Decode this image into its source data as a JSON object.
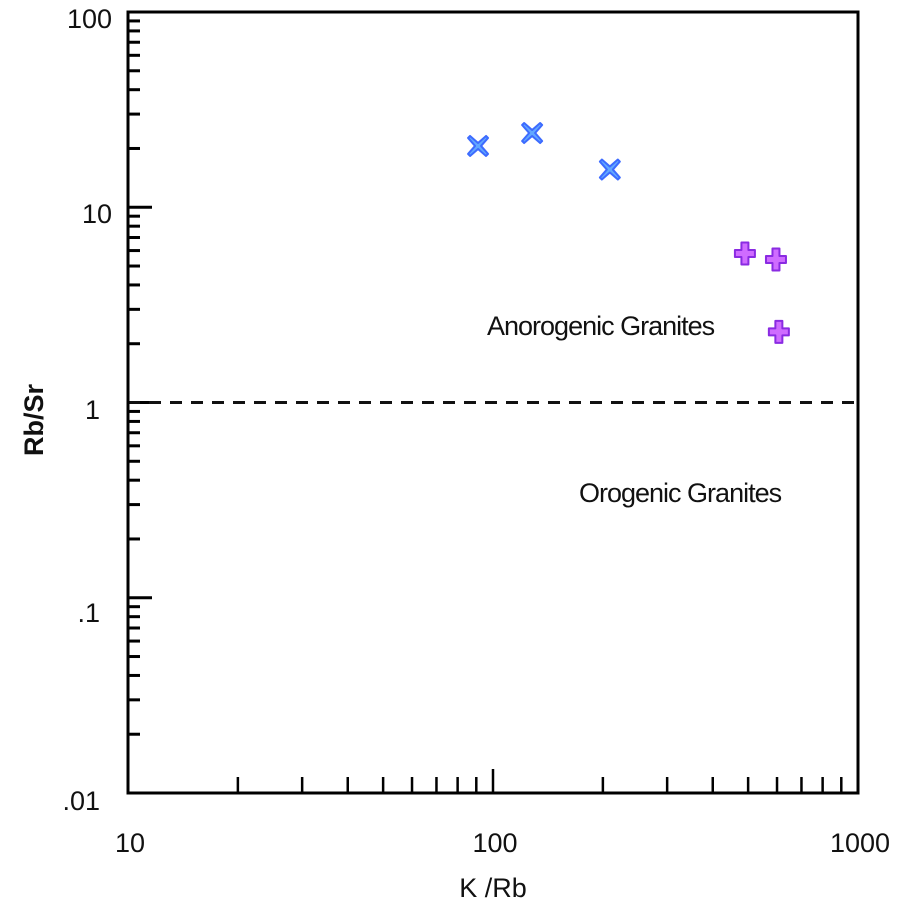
{
  "chart_data": {
    "type": "scatter",
    "title": "",
    "xlabel": "K /Rb",
    "ylabel": "Rb/Sr",
    "xscale": "log",
    "yscale": "log",
    "xlim": [
      10,
      1000
    ],
    "ylim": [
      0.01,
      100
    ],
    "x_tick_labels": [
      "10",
      "100",
      "1000"
    ],
    "x_tick_values": [
      10,
      100,
      1000
    ],
    "y_tick_labels": [
      "100",
      "10",
      "1",
      ".1",
      ".01"
    ],
    "y_tick_values": [
      100,
      10,
      1,
      0.1,
      0.01
    ],
    "grid": false,
    "legend": null,
    "series": [
      {
        "name": "blue-x",
        "marker": "x",
        "color": "#3d6bff",
        "fill": "#62a8ff",
        "points": [
          {
            "x": 91,
            "y": 20.6
          },
          {
            "x": 128,
            "y": 24
          },
          {
            "x": 209,
            "y": 15.6
          }
        ]
      },
      {
        "name": "purple-plus",
        "marker": "plus",
        "color": "#8a2be2",
        "fill": "#cf6cff",
        "points": [
          {
            "x": 490,
            "y": 5.8
          },
          {
            "x": 596,
            "y": 5.4
          },
          {
            "x": 607,
            "y": 2.3
          }
        ]
      }
    ],
    "reference_lines": [
      {
        "type": "horizontal",
        "y": 1,
        "style": "dashed",
        "color": "#111111"
      }
    ],
    "annotations": [
      {
        "text": "Anorogenic Granites",
        "x": 220,
        "y": 2.5
      },
      {
        "text": "Orogenic Granites",
        "x": 330,
        "y": 0.33
      }
    ]
  },
  "labels": {
    "xlabel": "K /Rb",
    "ylabel": "Rb/Sr",
    "annot_anorogenic": "Anorogenic Granites",
    "annot_orogenic": "Orogenic Granites",
    "x_ticks": [
      "10",
      "100",
      "1000"
    ],
    "y_ticks": [
      "100",
      "10",
      "1",
      ".1",
      ".01"
    ]
  }
}
